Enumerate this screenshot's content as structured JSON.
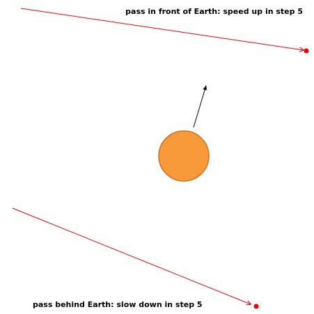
{
  "labels": {
    "front": "pass in front of Earth: speed up in step 5",
    "behind": "pass behind Earth: slow down in step 5"
  }
}
